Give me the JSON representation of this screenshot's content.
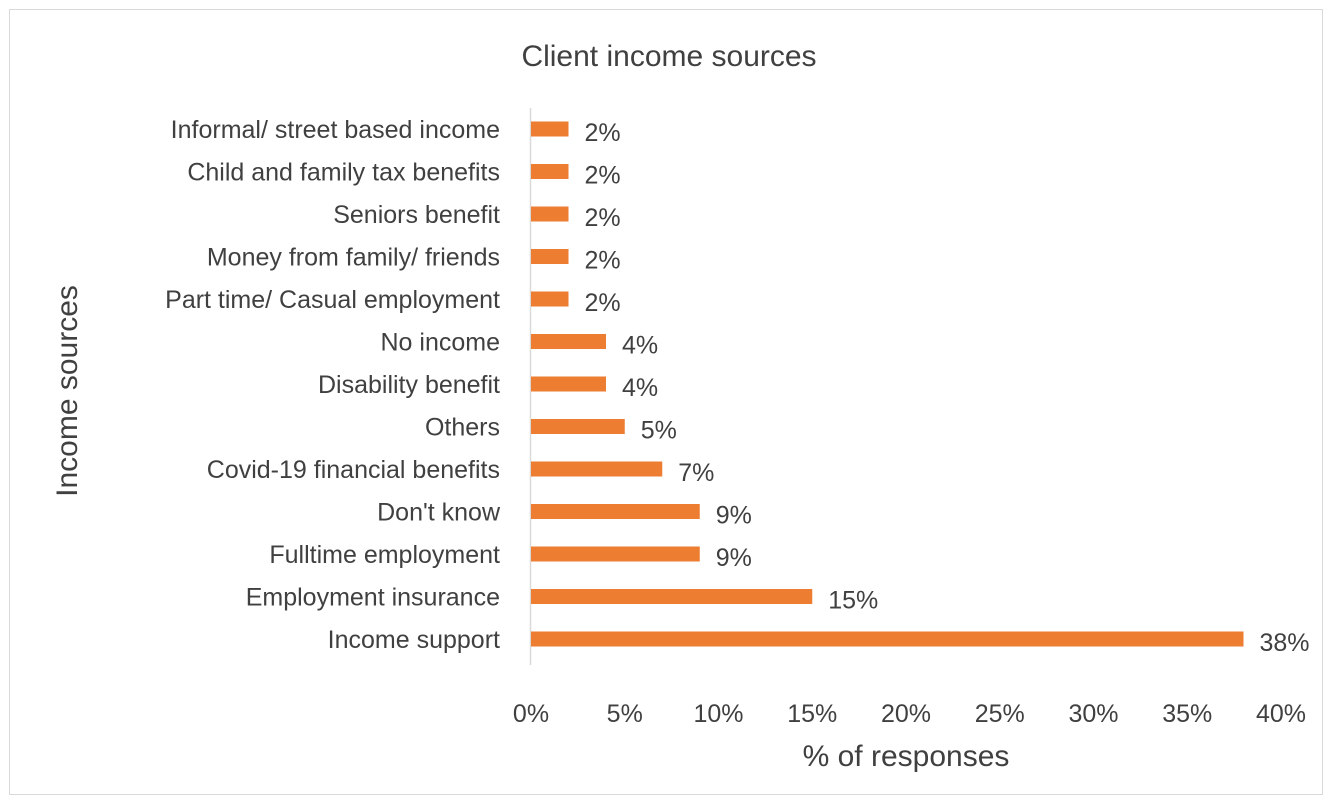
{
  "chart_data": {
    "type": "bar",
    "orientation": "horizontal",
    "title": "Client income sources",
    "xlabel": "% of responses",
    "ylabel": "Income sources",
    "categories": [
      "Informal/ street based income",
      "Child and family tax benefits",
      "Seniors benefit",
      "Money from family/ friends",
      "Part time/ Casual employment",
      "No income",
      "Disability benefit",
      "Others",
      "Covid-19 financial benefits",
      "Don't know",
      "Fulltime employment",
      "Employment insurance",
      "Income support"
    ],
    "values": [
      2,
      2,
      2,
      2,
      2,
      4,
      4,
      5,
      7,
      9,
      9,
      15,
      38
    ],
    "data_labels": [
      "2%",
      "2%",
      "2%",
      "2%",
      "2%",
      "4%",
      "4%",
      "5%",
      "7%",
      "9%",
      "9%",
      "15%",
      "38%"
    ],
    "xlim": [
      0,
      40
    ],
    "xticks": [
      0,
      5,
      10,
      15,
      20,
      25,
      30,
      35,
      40
    ],
    "xtick_labels": [
      "0%",
      "5%",
      "10%",
      "15%",
      "20%",
      "25%",
      "30%",
      "35%",
      "40%"
    ],
    "bar_color": "#ED7D31",
    "grid": false,
    "legend": "none"
  }
}
